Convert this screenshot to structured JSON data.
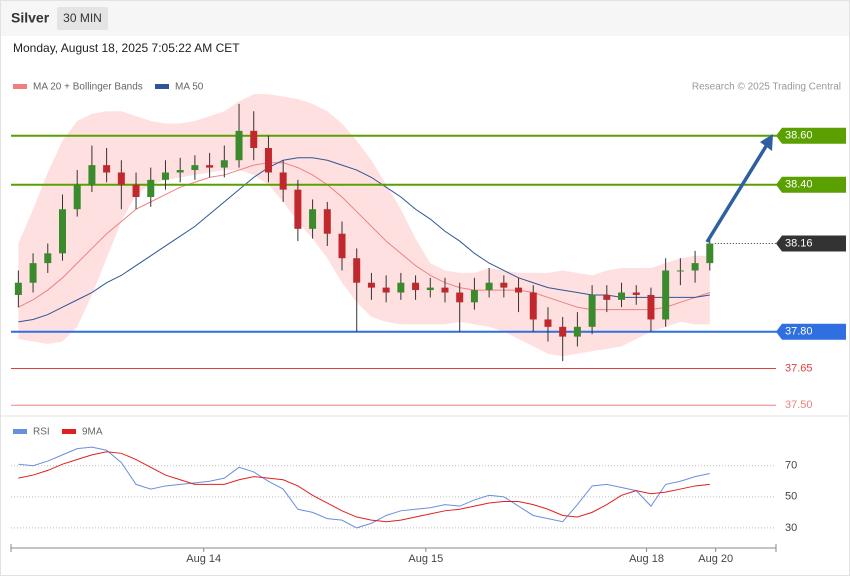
{
  "header": {
    "title": "Silver",
    "timeframe": "30 MIN",
    "timestamp": "Monday, August 18, 2025 7:05:22 AM CET",
    "credit": "Research © 2025 Trading Central"
  },
  "chart_data": [
    {
      "type": "candlestick",
      "up_color": "#3c8a2e",
      "down_color": "#c0282d",
      "open": [
        37.95,
        38.0,
        38.08,
        38.12,
        38.3,
        38.4,
        38.48,
        38.45,
        38.4,
        38.35,
        38.42,
        38.45,
        38.46,
        38.48,
        38.47,
        38.5,
        38.62,
        38.55,
        38.45,
        38.38,
        38.22,
        38.3,
        38.2,
        38.1,
        38.0,
        37.98,
        37.96,
        38.0,
        37.97,
        37.98,
        37.96,
        37.92,
        37.97,
        38.0,
        37.98,
        37.96,
        37.85,
        37.82,
        37.78,
        37.82,
        37.95,
        37.93,
        37.96,
        37.95,
        37.85,
        38.05,
        38.05,
        38.08
      ],
      "high": [
        38.05,
        38.12,
        38.16,
        38.36,
        38.46,
        38.56,
        38.55,
        38.5,
        38.45,
        38.47,
        38.5,
        38.51,
        38.52,
        38.53,
        38.56,
        38.73,
        38.7,
        38.6,
        38.5,
        38.42,
        38.34,
        38.33,
        38.25,
        38.14,
        38.04,
        38.03,
        38.04,
        38.03,
        38.02,
        38.02,
        38.0,
        38.02,
        38.06,
        38.03,
        38.02,
        37.99,
        37.9,
        37.86,
        37.88,
        37.99,
        37.99,
        38.0,
        37.99,
        37.98,
        38.1,
        38.1,
        38.13,
        38.19
      ],
      "low": [
        37.9,
        37.96,
        38.04,
        38.09,
        38.27,
        38.37,
        38.41,
        38.3,
        38.3,
        38.31,
        38.38,
        38.41,
        38.42,
        38.43,
        38.43,
        38.47,
        38.5,
        38.41,
        38.33,
        38.17,
        38.18,
        38.15,
        38.05,
        37.8,
        37.93,
        37.92,
        37.93,
        37.93,
        37.94,
        37.92,
        37.8,
        37.89,
        37.94,
        37.94,
        37.88,
        37.8,
        37.76,
        37.68,
        37.74,
        37.79,
        37.88,
        37.9,
        37.91,
        37.8,
        37.82,
        37.99,
        38.0,
        38.05
      ],
      "close": [
        38.0,
        38.08,
        38.12,
        38.3,
        38.4,
        38.48,
        38.45,
        38.4,
        38.35,
        38.42,
        38.45,
        38.46,
        38.48,
        38.47,
        38.5,
        38.62,
        38.55,
        38.45,
        38.38,
        38.22,
        38.3,
        38.2,
        38.1,
        38.0,
        37.98,
        37.96,
        38.0,
        37.97,
        37.98,
        37.96,
        37.92,
        37.97,
        38.0,
        37.98,
        37.96,
        37.85,
        37.82,
        37.78,
        37.82,
        37.95,
        37.93,
        37.96,
        37.95,
        37.85,
        38.05,
        38.05,
        38.08,
        38.16
      ],
      "series": [
        {
          "name": "MA 20 + Bollinger Bands",
          "color": "#f08080",
          "band_color": "#ffe0e0",
          "values": [
            37.9,
            37.93,
            37.97,
            38.02,
            38.08,
            38.14,
            38.2,
            38.25,
            38.3,
            38.33,
            38.36,
            38.39,
            38.41,
            38.43,
            38.44,
            38.46,
            38.48,
            38.49,
            38.49,
            38.47,
            38.44,
            38.4,
            38.35,
            38.29,
            38.23,
            38.17,
            38.12,
            38.07,
            38.03,
            38.0,
            37.98,
            37.97,
            37.97,
            37.97,
            37.97,
            37.96,
            37.94,
            37.92,
            37.9,
            37.89,
            37.89,
            37.89,
            37.89,
            37.89,
            37.9,
            37.92,
            37.94,
            37.96
          ],
          "upper": [
            38.16,
            38.3,
            38.45,
            38.58,
            38.66,
            38.69,
            38.7,
            38.7,
            38.68,
            38.66,
            38.65,
            38.65,
            38.66,
            38.68,
            38.7,
            38.74,
            38.77,
            38.77,
            38.76,
            38.75,
            38.73,
            38.7,
            38.65,
            38.58,
            38.5,
            38.4,
            38.3,
            38.18,
            38.08,
            38.05,
            38.04,
            38.04,
            38.06,
            38.05,
            38.04,
            38.04,
            38.04,
            38.05,
            38.04,
            38.03,
            38.05,
            38.06,
            38.06,
            38.06,
            38.08,
            38.1,
            38.11,
            38.11
          ],
          "lower": [
            37.77,
            37.76,
            37.75,
            37.76,
            37.82,
            37.95,
            38.1,
            38.25,
            38.36,
            38.4,
            38.42,
            38.43,
            38.44,
            38.45,
            38.46,
            38.46,
            38.44,
            38.4,
            38.33,
            38.25,
            38.18,
            38.1,
            38.0,
            37.92,
            37.86,
            37.84,
            37.83,
            37.83,
            37.83,
            37.83,
            37.84,
            37.83,
            37.82,
            37.8,
            37.77,
            37.74,
            37.71,
            37.7,
            37.71,
            37.72,
            37.73,
            37.74,
            37.77,
            37.8,
            37.82,
            37.84,
            37.83,
            37.83
          ]
        },
        {
          "name": "MA 50",
          "color": "#2f5597",
          "values": [
            37.84,
            37.85,
            37.87,
            37.9,
            37.93,
            37.96,
            38.0,
            38.03,
            38.07,
            38.11,
            38.15,
            38.19,
            38.23,
            38.28,
            38.33,
            38.38,
            38.43,
            38.47,
            38.5,
            38.51,
            38.51,
            38.5,
            38.48,
            38.46,
            38.43,
            38.39,
            38.35,
            38.3,
            38.26,
            38.21,
            38.17,
            38.12,
            38.08,
            38.05,
            38.02,
            38.0,
            37.98,
            37.97,
            37.96,
            37.95,
            37.95,
            37.94,
            37.94,
            37.94,
            37.94,
            37.94,
            37.94,
            37.95
          ]
        }
      ],
      "levels": [
        {
          "value": 38.6,
          "label": "38.60",
          "color": "#5aa000",
          "boxed": true
        },
        {
          "value": 38.4,
          "label": "38.40",
          "color": "#5aa000",
          "boxed": true
        },
        {
          "value": 37.8,
          "label": "37.80",
          "color": "#2f6fe0",
          "boxed": true
        },
        {
          "value": 37.65,
          "label": "37.65",
          "color": "#e04040",
          "boxed": false
        },
        {
          "value": 37.5,
          "label": "37.50",
          "color": "#f08080",
          "boxed": false
        }
      ],
      "last_price": 38.16,
      "last_color": "#333333",
      "ylim": [
        37.46,
        38.75
      ],
      "xlim": [
        -0.5,
        51.5
      ]
    },
    {
      "type": "line",
      "series": [
        {
          "name": "RSI",
          "color": "#6a8fdc",
          "values": [
            71,
            70,
            73,
            77,
            81,
            82,
            80,
            72,
            58,
            55,
            57,
            58,
            59,
            60,
            62,
            69,
            66,
            60,
            55,
            42,
            40,
            36,
            35,
            30,
            33,
            38,
            41,
            42,
            43,
            45,
            44,
            48,
            51,
            50,
            44,
            38,
            36,
            34,
            45,
            57,
            58,
            56,
            54,
            44,
            58,
            60,
            63,
            65
          ]
        },
        {
          "name": "9MA",
          "color": "#e02020",
          "values": [
            62,
            64,
            67,
            71,
            74,
            77,
            79,
            78,
            74,
            69,
            64,
            61,
            58,
            58,
            58,
            61,
            63,
            62,
            61,
            57,
            51,
            46,
            41,
            37,
            35,
            34,
            35,
            37,
            39,
            41,
            42,
            44,
            46,
            47,
            47,
            45,
            42,
            38,
            37,
            40,
            45,
            51,
            54,
            52,
            53,
            55,
            57,
            58
          ]
        }
      ],
      "ylim": [
        19,
        93
      ],
      "yticks": [
        70,
        50,
        30
      ],
      "xlim": [
        -0.5,
        51.5
      ],
      "xticks": [
        {
          "value": 12.6,
          "label": "Aug 14"
        },
        {
          "value": 27.7,
          "label": "Aug 15"
        },
        {
          "value": 42.7,
          "label": "Aug 18"
        },
        {
          "value": 47.4,
          "label": "Aug 20"
        }
      ]
    }
  ]
}
